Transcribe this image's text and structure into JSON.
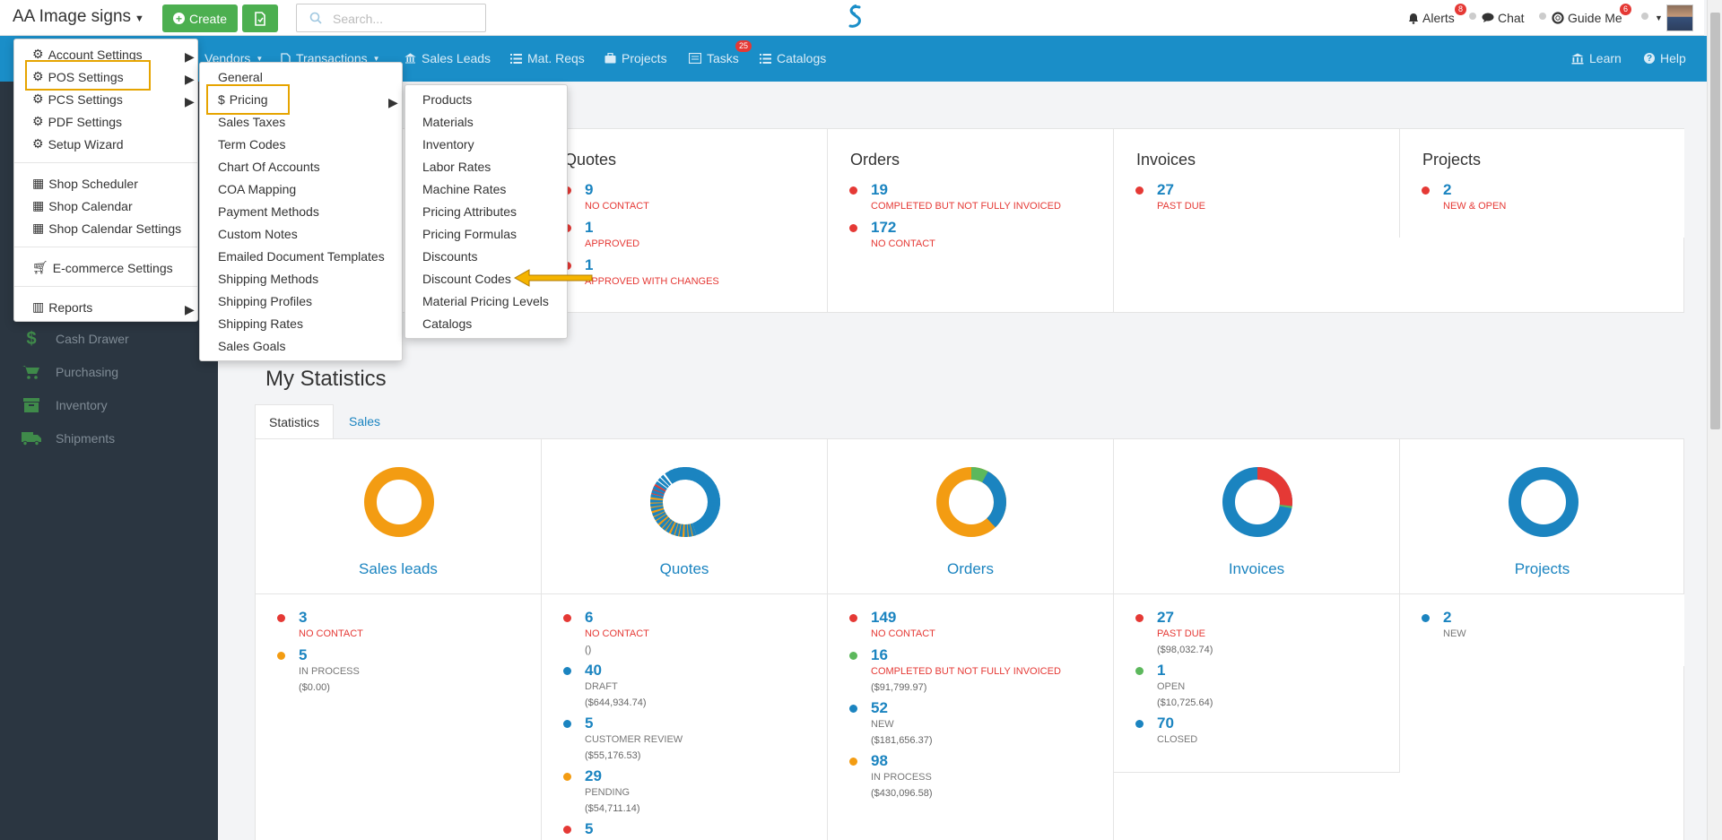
{
  "header": {
    "brand": "AA Image signs",
    "create_label": "Create",
    "search_placeholder": "Search...",
    "alerts_label": "Alerts",
    "alerts_count": "8",
    "chat_label": "Chat",
    "guide_label": "Guide Me",
    "guide_count": "6"
  },
  "nav": {
    "items": [
      "Vendors",
      "Transactions",
      "Sales Leads",
      "Mat. Reqs",
      "Projects",
      "Tasks",
      "Catalogs"
    ],
    "tasks_count": "25",
    "learn": "Learn",
    "help": "Help"
  },
  "sidebar": {
    "items": [
      "Cash Drawer",
      "Purchasing",
      "Inventory",
      "Shipments"
    ]
  },
  "summary": {
    "quotes": {
      "title": "Quotes",
      "stats": [
        {
          "num": "9",
          "label": "NO CONTACT"
        },
        {
          "num": "1",
          "label": "APPROVED"
        },
        {
          "num": "1",
          "label": "APPROVED WITH CHANGES"
        }
      ]
    },
    "orders": {
      "title": "Orders",
      "stats": [
        {
          "num": "19",
          "label": "COMPLETED BUT NOT FULLY INVOICED"
        },
        {
          "num": "172",
          "label": "NO CONTACT"
        }
      ]
    },
    "invoices": {
      "title": "Invoices",
      "stats": [
        {
          "num": "27",
          "label": "PAST DUE"
        }
      ]
    },
    "projects": {
      "title": "Projects",
      "stats": [
        {
          "num": "2",
          "label": "NEW & OPEN"
        }
      ]
    }
  },
  "statistics": {
    "title": "My Statistics",
    "tabs": [
      "Statistics",
      "Sales"
    ],
    "charts": [
      "Sales leads",
      "Quotes",
      "Orders",
      "Invoices",
      "Projects"
    ],
    "sales_leads": [
      {
        "num": "3",
        "label": "NO CONTACT"
      },
      {
        "num": "5",
        "label": "IN PROCESS",
        "amount": "($0.00)"
      }
    ],
    "quotes": [
      {
        "num": "6",
        "label": "NO CONTACT",
        "amount": "()"
      },
      {
        "num": "40",
        "label": "DRAFT",
        "amount": "($644,934.74)"
      },
      {
        "num": "5",
        "label": "CUSTOMER REVIEW",
        "amount": "($55,176.53)"
      },
      {
        "num": "29",
        "label": "PENDING",
        "amount": "($54,711.14)"
      },
      {
        "num": "5",
        "label": ""
      }
    ],
    "orders": [
      {
        "num": "149",
        "label": "NO CONTACT"
      },
      {
        "num": "16",
        "label": "COMPLETED BUT NOT FULLY INVOICED",
        "amount": "($91,799.97)"
      },
      {
        "num": "52",
        "label": "NEW",
        "amount": "($181,656.37)"
      },
      {
        "num": "98",
        "label": "IN PROCESS",
        "amount": "($430,096.58)"
      }
    ],
    "invoices": [
      {
        "num": "27",
        "label": "PAST DUE",
        "amount": "($98,032.74)"
      },
      {
        "num": "1",
        "label": "OPEN",
        "amount": "($10,725.64)"
      },
      {
        "num": "70",
        "label": "CLOSED"
      }
    ],
    "projects": [
      {
        "num": "2",
        "label": "NEW"
      }
    ]
  },
  "menus": {
    "settings": [
      "Account Settings",
      "POS Settings",
      "PCS Settings",
      "PDF Settings",
      "Setup Wizard",
      "Shop Scheduler",
      "Shop Calendar",
      "Shop Calendar Settings",
      "E-commerce Settings",
      "Reports"
    ],
    "pos": [
      "General",
      "Pricing",
      "Sales Taxes",
      "Term Codes",
      "Chart Of Accounts",
      "COA Mapping",
      "Payment Methods",
      "Custom Notes",
      "Emailed Document Templates",
      "Shipping Methods",
      "Shipping Profiles",
      "Shipping Rates",
      "Sales Goals"
    ],
    "pricing": [
      "Products",
      "Materials",
      "Inventory",
      "Labor Rates",
      "Machine Rates",
      "Pricing Attributes",
      "Pricing Formulas",
      "Discounts",
      "Discount Codes",
      "Material Pricing Levels",
      "Catalogs"
    ]
  },
  "colors": {
    "accent": "#1a8ec8",
    "create": "#4caf50",
    "highlight": "#e6a400",
    "danger": "#e53935"
  }
}
